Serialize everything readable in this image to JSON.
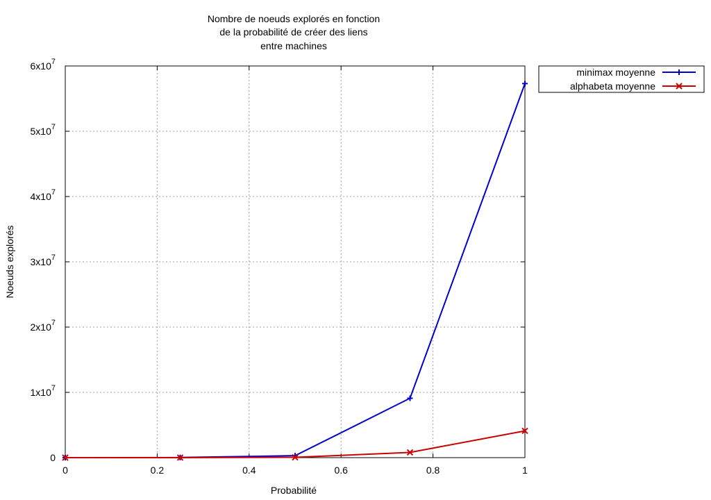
{
  "chart_data": {
    "type": "line",
    "title_lines": [
      "Nombre de noeuds explorés en fonction",
      "de la probabilité de créer des liens",
      "entre machines"
    ],
    "xlabel": "Probabilité",
    "ylabel": "Noeuds explorés",
    "xlim": [
      0,
      1
    ],
    "ylim": [
      0,
      60000000
    ],
    "x_ticks": [
      0,
      0.2,
      0.4,
      0.6,
      0.8,
      1
    ],
    "x_tick_labels": [
      "0",
      "0.2",
      "0.4",
      "0.6",
      "0.8",
      "1"
    ],
    "y_ticks": [
      {
        "value": 0,
        "mant": "0",
        "exp": ""
      },
      {
        "value": 10000000,
        "mant": "1x10",
        "exp": "7"
      },
      {
        "value": 20000000,
        "mant": "2x10",
        "exp": "7"
      },
      {
        "value": 30000000,
        "mant": "3x10",
        "exp": "7"
      },
      {
        "value": 40000000,
        "mant": "4x10",
        "exp": "7"
      },
      {
        "value": 50000000,
        "mant": "5x10",
        "exp": "7"
      },
      {
        "value": 60000000,
        "mant": "6x10",
        "exp": "7"
      }
    ],
    "grid": true,
    "legend_position": "outside top-right",
    "series": [
      {
        "name": "minimax moyenne",
        "color": "#0000cc",
        "marker": "plus",
        "x": [
          0,
          0.25,
          0.5,
          0.75,
          1
        ],
        "values": [
          0,
          20000,
          300000,
          9100000,
          57300000
        ]
      },
      {
        "name": "alphabeta moyenne",
        "color": "#cc0000",
        "marker": "cross",
        "x": [
          0,
          0.25,
          0.5,
          0.75,
          1
        ],
        "values": [
          0,
          5000,
          50000,
          800000,
          4100000
        ]
      }
    ]
  }
}
